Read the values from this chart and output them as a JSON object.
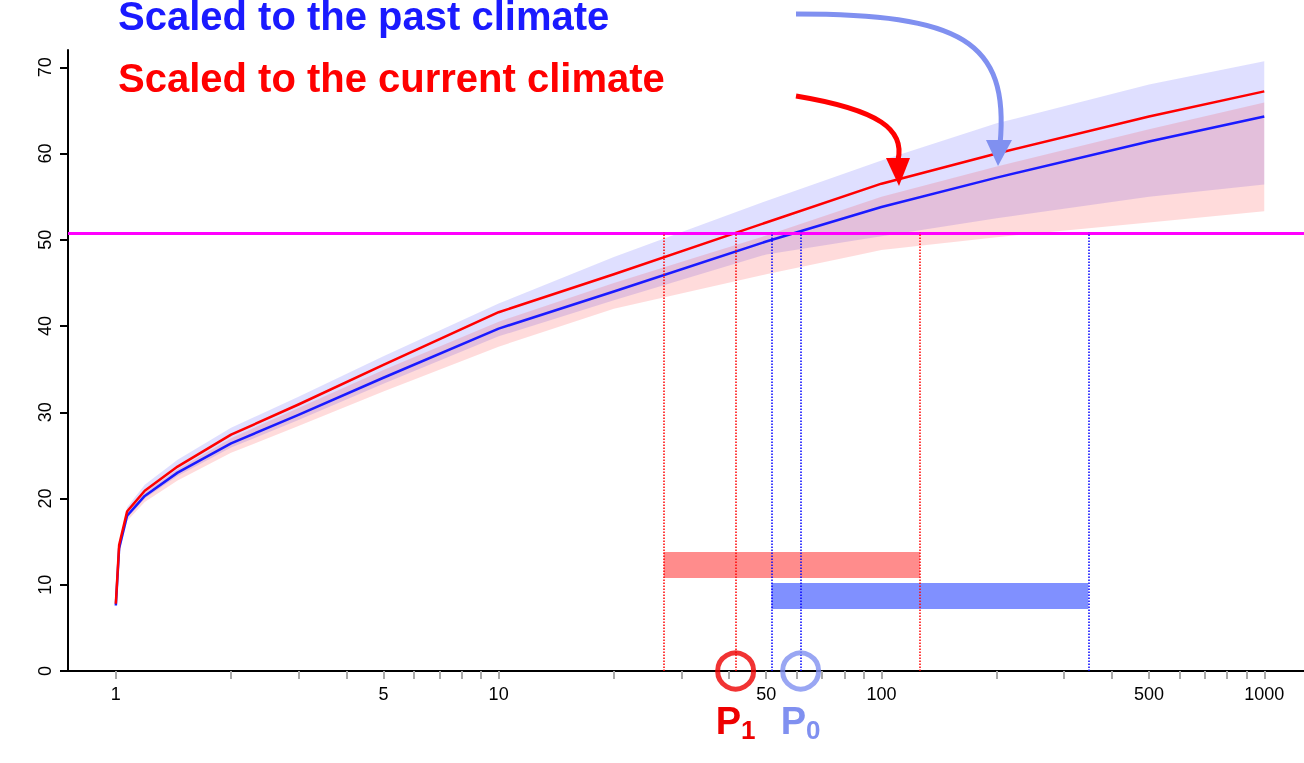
{
  "chart_data": {
    "type": "line",
    "log": "x",
    "xlim": [
      0.75,
      1270
    ],
    "xticks": [
      1,
      {
        "value": 2,
        "label": null
      },
      {
        "value": 3,
        "label": null
      },
      {
        "value": 4,
        "label": null
      },
      5,
      {
        "value": 6,
        "label": null
      },
      {
        "value": 7,
        "label": null
      },
      {
        "value": 8,
        "label": null
      },
      {
        "value": 9,
        "label": null
      },
      10,
      {
        "value": 20,
        "label": null
      },
      {
        "value": 30,
        "label": null
      },
      {
        "value": 40,
        "label": null
      },
      50,
      {
        "value": 60,
        "label": null
      },
      {
        "value": 70,
        "label": null
      },
      {
        "value": 80,
        "label": null
      },
      {
        "value": 90,
        "label": null
      },
      100,
      {
        "value": 200,
        "label": null
      },
      {
        "value": 300,
        "label": null
      },
      {
        "value": 400,
        "label": null
      },
      500,
      {
        "value": 600,
        "label": null
      },
      {
        "value": 700,
        "label": null
      },
      {
        "value": 800,
        "label": null
      },
      {
        "value": 900,
        "label": null
      },
      1000
    ],
    "ylim": [
      0,
      72
    ],
    "yticks": [
      0,
      10,
      20,
      30,
      40,
      50,
      60,
      70
    ],
    "series": [
      {
        "name": "Scaled to the past climate",
        "color": "#1a1aff",
        "x": [
          1,
          1.02,
          1.07,
          1.19,
          1.45,
          2,
          3,
          5,
          10,
          20,
          50,
          100,
          200,
          500,
          1000
        ],
        "values": [
          7.6,
          14.2,
          18.0,
          20.3,
          23.0,
          26.4,
          29.7,
          34.0,
          39.7,
          44.0,
          49.8,
          53.8,
          57.2,
          61.4,
          64.3
        ],
        "upper": [
          7.7,
          14.9,
          19.0,
          21.6,
          24.5,
          28.2,
          31.8,
          36.5,
          42.6,
          48.0,
          54.5,
          59.2,
          63.5,
          68.0,
          70.7
        ],
        "lower": [
          7.5,
          14.0,
          17.7,
          20.0,
          22.6,
          25.9,
          29.1,
          33.3,
          38.8,
          43.0,
          48.3,
          50.4,
          52.5,
          55.0,
          56.4
        ]
      },
      {
        "name": "Scaled to the current climate",
        "color": "#ff0000",
        "x": [
          1,
          1.02,
          1.07,
          1.19,
          1.45,
          2,
          3,
          5,
          10,
          20,
          50,
          100,
          200,
          500,
          1000
        ],
        "values": [
          7.8,
          14.6,
          18.5,
          20.9,
          23.7,
          27.4,
          30.9,
          35.5,
          41.6,
          46.0,
          52.0,
          56.5,
          60.0,
          64.3,
          67.2
        ],
        "upper": [
          7.8,
          14.5,
          18.3,
          20.7,
          23.4,
          27.0,
          30.5,
          34.9,
          40.5,
          45.0,
          50.5,
          55.0,
          58.5,
          62.8,
          65.9
        ],
        "lower": [
          7.4,
          13.8,
          17.4,
          19.6,
          22.1,
          25.3,
          28.4,
          32.4,
          37.6,
          42.0,
          46.0,
          48.8,
          50.3,
          52.0,
          53.3
        ]
      },
      {
        "type": "line",
        "color": "#ff8c8c",
        "x": [
          27,
          126
        ],
        "values": [
          12.3,
          12.3
        ]
      },
      {
        "type": "line",
        "color": "#8090ff",
        "x": [
          51.6,
          347
        ],
        "values": [
          8.7,
          8.7
        ]
      },
      {
        "type": "scatter",
        "marker": "circle",
        "color": "#ee0000",
        "x": [
          41.6
        ],
        "values": [
          0
        ]
      },
      {
        "type": "scatter",
        "marker": "circle",
        "color": "#8090f0",
        "x": [
          61.5
        ],
        "values": [
          0
        ]
      }
    ],
    "ref_lines": [
      {
        "axis": "y",
        "value": 50.8,
        "label": null,
        "color": "#ff00ff",
        "line_style": "solid"
      },
      {
        "axis": "x",
        "value": 27,
        "label": null,
        "color": "#ff0000",
        "line_style": "dotted"
      },
      {
        "axis": "x",
        "value": 41.6,
        "label": null,
        "color": "#ff0000",
        "line_style": "dotted"
      },
      {
        "axis": "x",
        "value": 126,
        "label": null,
        "color": "#ff0000",
        "line_style": "dotted"
      },
      {
        "axis": "x",
        "value": 51.6,
        "label": null,
        "color": "#0000ff",
        "line_style": "dotted"
      },
      {
        "axis": "x",
        "value": 61.5,
        "label": null,
        "color": "#0000ff",
        "line_style": "dotted"
      },
      {
        "axis": "x",
        "value": 347,
        "label": null,
        "color": "#0000ff",
        "line_style": "dotted"
      }
    ],
    "annotations": [
      {
        "text": "P$_{1}$",
        "x": 41.6,
        "y": 0
      },
      {
        "text": "P$_{0}$",
        "x": 61.5,
        "y": 0
      }
    ]
  }
}
